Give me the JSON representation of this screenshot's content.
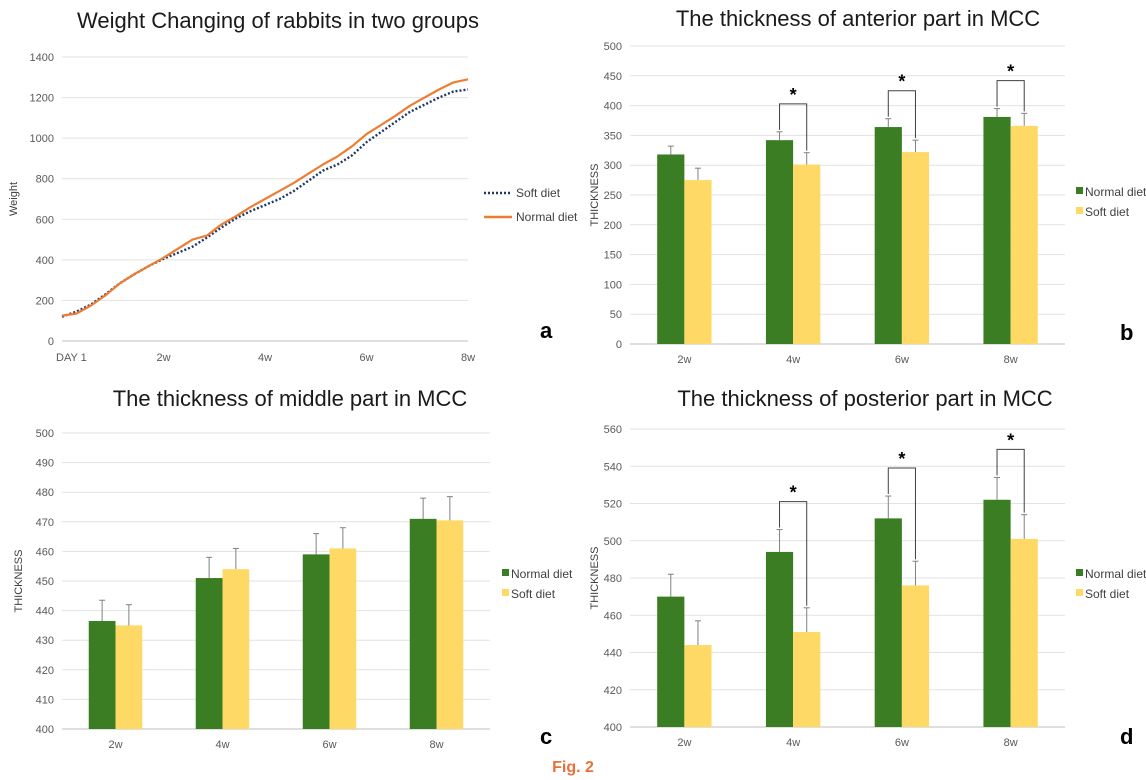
{
  "figure_caption": "Fig. 2",
  "colors": {
    "normal": "#3a7d22",
    "soft": "#ffd966",
    "normal_line": "#ed7d31",
    "soft_line": "#1f3864",
    "caption": "#e8703a"
  },
  "chart_data": [
    {
      "type": "line",
      "panel_label": "a",
      "title": "Weight Changing of rabbits in two groups",
      "xlabel": "",
      "ylabel": "Weight",
      "xlim": [
        0,
        56
      ],
      "ylim": [
        0,
        1400
      ],
      "yticks": [
        0,
        200,
        400,
        600,
        800,
        1000,
        1200,
        1400
      ],
      "xticks": [
        {
          "x": 0,
          "label": "DAY 1"
        },
        {
          "x": 14,
          "label": "2w"
        },
        {
          "x": 28,
          "label": "4w"
        },
        {
          "x": 42,
          "label": "6w"
        },
        {
          "x": 56,
          "label": "8w"
        }
      ],
      "grid": true,
      "legend_position": "right",
      "series": [
        {
          "name": "Soft diet",
          "style": "dotted",
          "color": "#1f3864",
          "x": [
            0,
            2,
            4,
            6,
            8,
            10,
            12,
            14,
            16,
            18,
            20,
            22,
            24,
            26,
            28,
            30,
            32,
            34,
            36,
            38,
            40,
            42,
            44,
            46,
            48,
            50,
            52,
            54,
            56
          ],
          "y": [
            120,
            145,
            180,
            230,
            285,
            330,
            370,
            405,
            435,
            465,
            510,
            560,
            605,
            640,
            670,
            700,
            740,
            790,
            840,
            870,
            915,
            980,
            1030,
            1080,
            1130,
            1165,
            1200,
            1230,
            1240
          ]
        },
        {
          "name": "Normal diet",
          "style": "solid",
          "color": "#ed7d31",
          "x": [
            0,
            2,
            4,
            6,
            8,
            10,
            12,
            14,
            16,
            18,
            20,
            22,
            24,
            26,
            28,
            30,
            32,
            34,
            36,
            38,
            40,
            42,
            44,
            46,
            48,
            50,
            52,
            54,
            56
          ],
          "y": [
            125,
            135,
            175,
            225,
            285,
            330,
            370,
            410,
            455,
            500,
            520,
            575,
            615,
            660,
            700,
            740,
            780,
            825,
            870,
            910,
            960,
            1020,
            1065,
            1110,
            1160,
            1200,
            1240,
            1275,
            1290
          ]
        }
      ]
    },
    {
      "type": "bar",
      "panel_label": "b",
      "title": "The thickness of anterior part in MCC",
      "xlabel": "",
      "ylabel": "THICKNESS",
      "ylim": [
        0,
        500
      ],
      "yticks": [
        0,
        50,
        100,
        150,
        200,
        250,
        300,
        350,
        400,
        450,
        500
      ],
      "grid": true,
      "legend_position": "right",
      "categories": [
        "2w",
        "4w",
        "6w",
        "8w"
      ],
      "series": [
        {
          "name": "Normal diet",
          "color": "#3a7d22",
          "values": [
            318,
            342,
            364,
            381
          ],
          "errors": [
            14,
            14,
            14,
            14
          ]
        },
        {
          "name": "Soft diet",
          "color": "#ffd966",
          "values": [
            275,
            301,
            322,
            366
          ],
          "errors": [
            20,
            20,
            20,
            21
          ]
        }
      ],
      "significance": [
        {
          "category": "4w",
          "label": "*"
        },
        {
          "category": "6w",
          "label": "*"
        },
        {
          "category": "8w",
          "label": "*"
        }
      ]
    },
    {
      "type": "bar",
      "panel_label": "c",
      "title": "The thickness of middle part in MCC",
      "xlabel": "",
      "ylabel": "THICKNESS",
      "ylim": [
        400,
        500
      ],
      "yticks": [
        400,
        410,
        420,
        430,
        440,
        450,
        460,
        470,
        480,
        490,
        500
      ],
      "grid": true,
      "legend_position": "right",
      "categories": [
        "2w",
        "4w",
        "6w",
        "8w"
      ],
      "series": [
        {
          "name": "Normal diet",
          "color": "#3a7d22",
          "values": [
            436.5,
            451,
            459,
            471
          ],
          "errors": [
            7,
            7,
            7,
            7
          ]
        },
        {
          "name": "Soft diet",
          "color": "#ffd966",
          "values": [
            435,
            454,
            461,
            470.5
          ],
          "errors": [
            7,
            7,
            7,
            8
          ]
        }
      ],
      "significance": []
    },
    {
      "type": "bar",
      "panel_label": "d",
      "title": "The thickness of posterior part in MCC",
      "xlabel": "",
      "ylabel": "THICKNESS",
      "ylim": [
        400,
        560
      ],
      "yticks": [
        400,
        420,
        440,
        460,
        480,
        500,
        520,
        540,
        560
      ],
      "grid": true,
      "legend_position": "right",
      "categories": [
        "2w",
        "4w",
        "6w",
        "8w"
      ],
      "series": [
        {
          "name": "Normal diet",
          "color": "#3a7d22",
          "values": [
            470,
            494,
            512,
            522
          ],
          "errors": [
            12,
            12,
            12,
            12
          ]
        },
        {
          "name": "Soft diet",
          "color": "#ffd966",
          "values": [
            444,
            451,
            476,
            501
          ],
          "errors": [
            13,
            13,
            13,
            13
          ]
        }
      ],
      "significance": [
        {
          "category": "4w",
          "label": "*"
        },
        {
          "category": "6w",
          "label": "*"
        },
        {
          "category": "8w",
          "label": "*"
        }
      ]
    }
  ]
}
